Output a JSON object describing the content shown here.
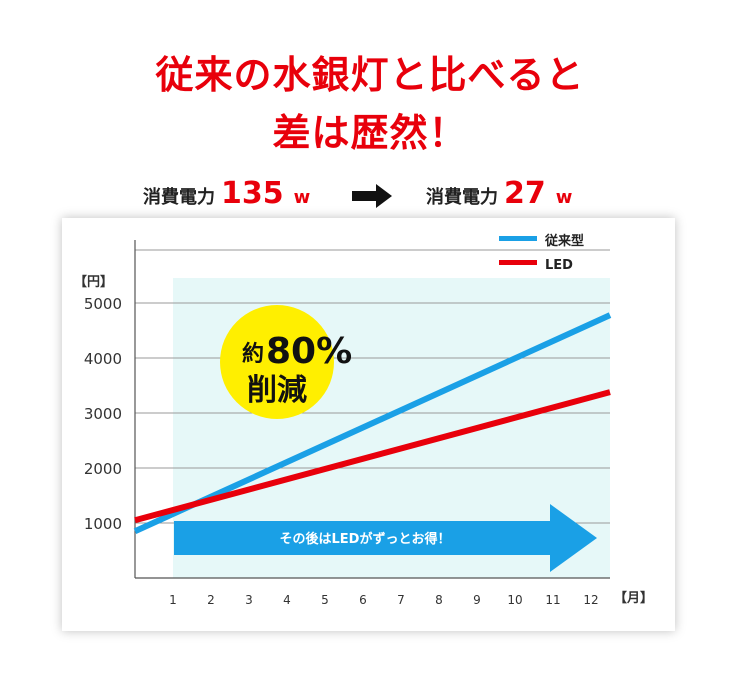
{
  "headline": {
    "line1": "従来の水銀灯と比べると",
    "line2": "差は歴然！"
  },
  "power_compare": {
    "left_label": "消費電力",
    "left_value": "135",
    "left_unit": "w",
    "right_label": "消費電力",
    "right_value": "27",
    "right_unit": "w"
  },
  "badge": {
    "prefix": "約",
    "percent": "80%",
    "line2": "削減",
    "color": "#ffef00"
  },
  "banner": {
    "text": "その後はLEDがずっとお得！",
    "color": "#1aa0e6"
  },
  "chart_data": {
    "type": "line",
    "y_unit_label": "【円】",
    "x_unit_label": "【月】",
    "x_ticks": [
      1,
      2,
      3,
      4,
      5,
      6,
      7,
      8,
      9,
      10,
      11,
      12
    ],
    "y_ticks": [
      1000,
      2000,
      3000,
      4000,
      5000
    ],
    "xlim": [
      0,
      12.5
    ],
    "ylim": [
      0,
      6000
    ],
    "series": [
      {
        "name": "従来型",
        "color": "#1aa0e6",
        "x": [
          0,
          12.5
        ],
        "y": [
          850,
          4780
        ]
      },
      {
        "name": "LED",
        "color": "#e8000b",
        "x": [
          0,
          12.5
        ],
        "y": [
          1050,
          3380
        ]
      }
    ],
    "legend_position": "top-right",
    "grid": "horizontal",
    "shaded_region": {
      "x_from": 1,
      "x_to": 12.5,
      "color": "#e6f8f8"
    }
  }
}
